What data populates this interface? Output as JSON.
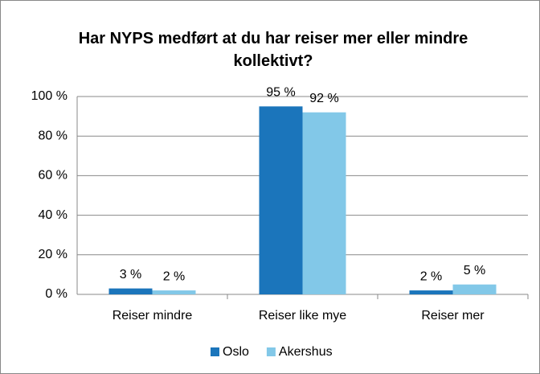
{
  "chart_data": {
    "type": "bar",
    "title": "Har NYPS medført at du har reiser mer eller mindre kollektivt?",
    "categories": [
      "Reiser mindre",
      "Reiser like mye",
      "Reiser mer"
    ],
    "series": [
      {
        "name": "Oslo",
        "color": "#1b75bb",
        "values": [
          3,
          95,
          2
        ],
        "value_labels": [
          "3 %",
          "95 %",
          "2 %"
        ]
      },
      {
        "name": "Akershus",
        "color": "#82c8e8",
        "values": [
          2,
          92,
          5
        ],
        "value_labels": [
          "2 %",
          "92 %",
          "5 %"
        ]
      }
    ],
    "ylim": [
      0,
      100
    ],
    "yticks": [
      {
        "value": 0,
        "label": "0 %"
      },
      {
        "value": 20,
        "label": "20 %"
      },
      {
        "value": 40,
        "label": "40 %"
      },
      {
        "value": 60,
        "label": "60 %"
      },
      {
        "value": 80,
        "label": "80 %"
      },
      {
        "value": 100,
        "label": "100 %"
      }
    ],
    "grid": true,
    "legend": "bottom"
  }
}
